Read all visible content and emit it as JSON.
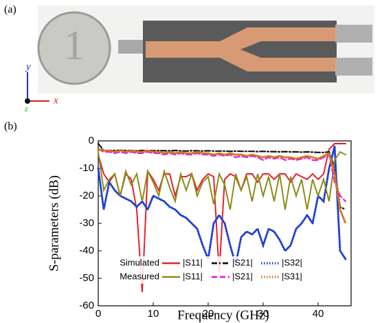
{
  "panel_a": {
    "label": "(a)",
    "axis_labels": [
      "y",
      "x",
      "z"
    ]
  },
  "chart_data": {
    "type": "line",
    "label": "(b)",
    "x_label": "Frequency (GHz)",
    "y_label": "S-parameters (dB)",
    "xlim": [
      0,
      46
    ],
    "ylim": [
      -60,
      0
    ],
    "xticks": [
      0,
      10,
      20,
      30,
      40
    ],
    "yticks": [
      0,
      -10,
      -20,
      -30,
      -40,
      -50,
      -60
    ],
    "legend_rows": [
      "Simulated",
      "Measured"
    ],
    "x": [
      0,
      1,
      2,
      3,
      4,
      5,
      6,
      7,
      8,
      9,
      10,
      11,
      12,
      13,
      14,
      15,
      16,
      17,
      18,
      19,
      20,
      21,
      22,
      23,
      24,
      25,
      26,
      27,
      28,
      29,
      30,
      31,
      32,
      33,
      34,
      35,
      36,
      37,
      38,
      39,
      40,
      41,
      42,
      43,
      44,
      45
    ],
    "series": [
      {
        "name": "|S11|",
        "color": "#e8202a",
        "style": "solid",
        "values": [
          -5,
          -12,
          -15,
          -12,
          -20,
          -12,
          -14,
          -25,
          -55,
          -11,
          -14,
          -18,
          -12,
          -12,
          -20,
          -13,
          -13,
          -12,
          -18,
          -14,
          -12,
          -13,
          -48,
          -14,
          -12,
          -13,
          -18,
          -12,
          -12,
          -15,
          -12,
          -12,
          -14,
          -12,
          -12,
          -15,
          -12,
          -13,
          -14,
          -12,
          -14,
          -12,
          -3,
          -1,
          -1,
          -1
        ]
      },
      {
        "name": "|S21|",
        "color": "#111111",
        "style": "dashdot",
        "values": [
          -1,
          -3.5,
          -3.5,
          -3.5,
          -3.4,
          -3.5,
          -3.5,
          -3.6,
          -3.5,
          -3.5,
          -3.6,
          -3.5,
          -3.6,
          -3.6,
          -3.5,
          -3.6,
          -3.7,
          -3.6,
          -3.6,
          -3.7,
          -3.6,
          -3.7,
          -3.7,
          -3.7,
          -3.8,
          -3.7,
          -3.8,
          -3.8,
          -3.8,
          -3.9,
          -3.8,
          -3.9,
          -3.9,
          -4,
          -3.9,
          -4,
          -4,
          -4.1,
          -4,
          -4.1,
          -4.2,
          -4.2,
          -4,
          -10,
          -24,
          -25
        ]
      },
      {
        "name": "|S32|",
        "color": "#2040d0",
        "style": "dot",
        "values": [
          -10,
          -25,
          -15,
          -18,
          -20,
          -21,
          -22,
          -24,
          -22,
          -25,
          -20,
          -21,
          -22,
          -24,
          -25,
          -27,
          -28,
          -30,
          -32,
          -38,
          -43,
          -30,
          -27,
          -30,
          -38,
          -45,
          -35,
          -33,
          -34,
          -32,
          -38,
          -32,
          -33,
          -36,
          -40,
          -38,
          -32,
          -30,
          -27,
          -30,
          -20,
          -22,
          -10,
          -2,
          -40,
          -43
        ]
      },
      {
        "name": "|S11|",
        "color": "#8b8b1a",
        "style": "solid",
        "values": [
          -4,
          -18,
          -14,
          -12,
          -20,
          -11,
          -16,
          -12,
          -22,
          -11,
          -15,
          -20,
          -11,
          -17,
          -22,
          -12,
          -18,
          -12,
          -20,
          -15,
          -13,
          -23,
          -12,
          -16,
          -25,
          -12,
          -18,
          -13,
          -22,
          -12,
          -20,
          -13,
          -22,
          -12,
          -25,
          -13,
          -20,
          -14,
          -25,
          -14,
          -20,
          -14,
          -22,
          -7,
          -4,
          -5
        ]
      },
      {
        "name": "|S21|",
        "color": "#e020e0",
        "style": "dash",
        "values": [
          -3,
          -4,
          -4,
          -4.5,
          -4,
          -4.5,
          -4,
          -4.5,
          -4.5,
          -4,
          -4.5,
          -4.5,
          -5,
          -4.5,
          -5,
          -4.5,
          -5,
          -5,
          -4.5,
          -5,
          -5,
          -5.5,
          -5,
          -5.5,
          -5,
          -6,
          -5.5,
          -6,
          -5.5,
          -6,
          -7,
          -6,
          -6.5,
          -6,
          -7,
          -6.5,
          -7,
          -6.5,
          -6,
          -7,
          -7,
          -6,
          -5,
          -15,
          -20,
          -22
        ]
      },
      {
        "name": "|S31|",
        "color": "#d2781e",
        "style": "dot",
        "values": [
          -3,
          -3.5,
          -3.5,
          -4,
          -3.5,
          -4,
          -3.5,
          -4,
          -4,
          -3.5,
          -4,
          -4,
          -4.5,
          -4,
          -4.5,
          -4,
          -4.5,
          -4.5,
          -4,
          -4.5,
          -4.5,
          -5,
          -4.5,
          -5,
          -4.5,
          -5,
          -5,
          -5.5,
          -5,
          -5.5,
          -6,
          -5.5,
          -6,
          -5.5,
          -6,
          -6,
          -6.5,
          -6,
          -5.5,
          -6,
          -6.5,
          -5.5,
          -4.5,
          -12,
          -25,
          -30
        ]
      }
    ]
  }
}
